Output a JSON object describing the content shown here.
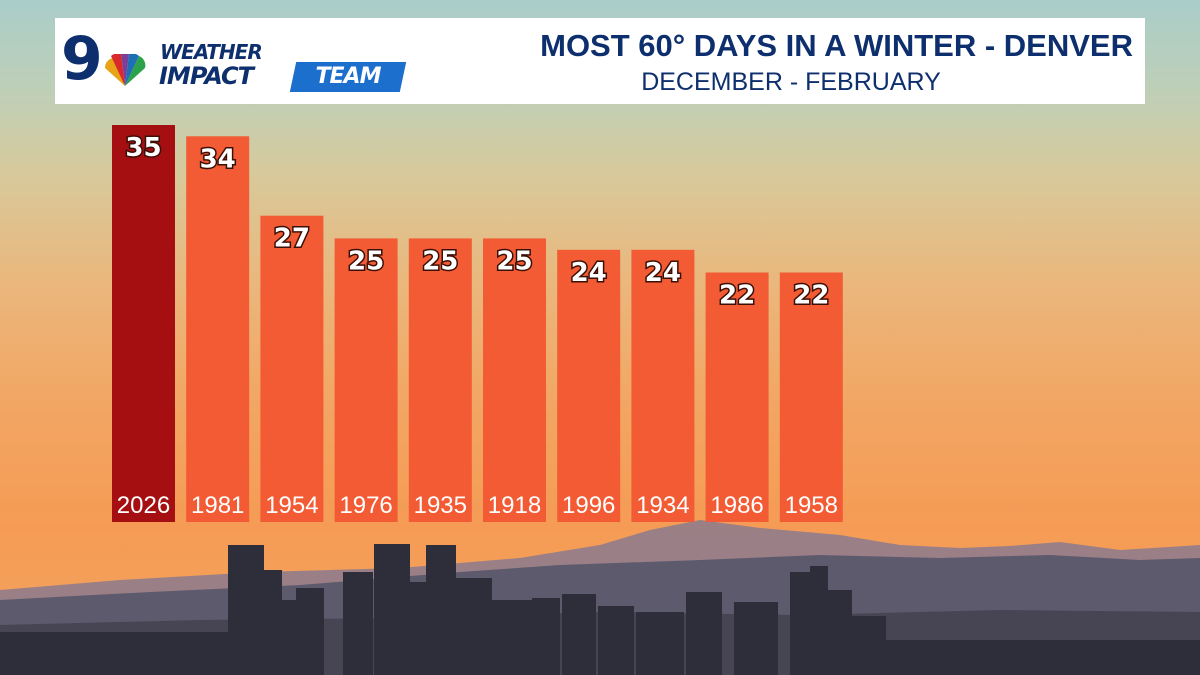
{
  "header": {
    "logo_number": "9",
    "logo_line1": "WEATHER",
    "logo_line2": "IMPACT",
    "logo_line3": "TEAM",
    "title": "MOST 60° DAYS IN A WINTER - DENVER",
    "subtitle": "DECEMBER - FEBRUARY"
  },
  "colors": {
    "highlight_bar": "#a50f12",
    "bar": "#f25b33",
    "header_text": "#0e2f6e",
    "team_badge": "#1d6fce"
  },
  "chart_data": {
    "type": "bar",
    "title": "MOST 60° DAYS IN A WINTER - DENVER",
    "subtitle": "DECEMBER - FEBRUARY",
    "categories": [
      "2026",
      "1981",
      "1954",
      "1976",
      "1935",
      "1918",
      "1996",
      "1934",
      "1986",
      "1958"
    ],
    "values": [
      35,
      34,
      27,
      25,
      25,
      25,
      24,
      24,
      22,
      22
    ],
    "highlight_index": 0,
    "ylim": [
      0,
      35
    ],
    "grid": false,
    "legend": "none"
  }
}
